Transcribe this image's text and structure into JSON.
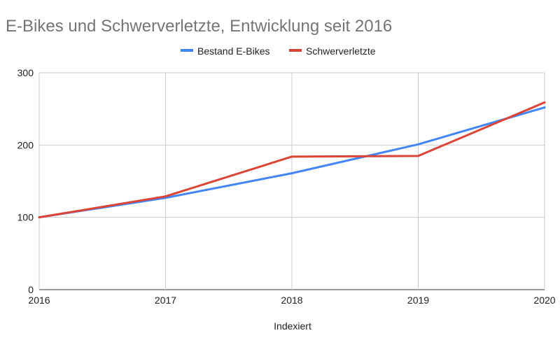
{
  "chart_data": {
    "type": "line",
    "title": "E-Bikes und Schwerverletzte, Entwicklung seit 2016",
    "xlabel": "Indexiert",
    "ylabel": "",
    "x": [
      "2016",
      "2017",
      "2018",
      "2019",
      "2020"
    ],
    "ylim": [
      0,
      300
    ],
    "yticks": [
      "0",
      "100",
      "200",
      "300"
    ],
    "grid": true,
    "legend_position": "top-center",
    "series": [
      {
        "name": "Bestand E-Bikes",
        "color": "#4285f4",
        "values": [
          100,
          127,
          161,
          201,
          252
        ]
      },
      {
        "name": "Schwerverletzte",
        "color": "#db4437",
        "values": [
          100,
          129,
          184,
          185,
          259
        ]
      }
    ]
  }
}
